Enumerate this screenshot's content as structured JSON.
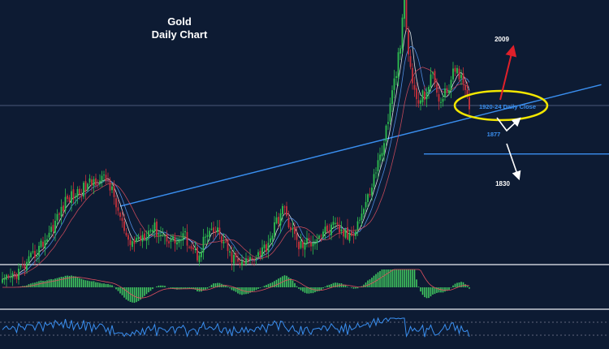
{
  "title": {
    "line1": "Gold",
    "line2": "Daily Chart"
  },
  "annotations": {
    "target_up": "2009",
    "daily_close": "1920-24 Daily Close",
    "support": "1877",
    "target_down": "1830"
  },
  "colors": {
    "background": "#0d1b33",
    "bull_candle": "#2fbf4f",
    "bear_candle": "#c8303a",
    "trendline": "#3a8ff0",
    "support_line": "#3a8ff0",
    "highlight_ellipse": "#f2e600",
    "arrow_up": "#e0202a",
    "arrow_down": "#ffffff",
    "panel_divider": "#c8ccd6",
    "ma_fast": "#ffffff",
    "ma_mid": "#5aa0ff",
    "ma_slow": "#e05060",
    "histogram": "#40c860",
    "oscillator": "#3a8ff0"
  },
  "chart_data": {
    "type": "candlestick",
    "instrument": "Gold",
    "timeframe": "Daily",
    "price_anchors": [
      {
        "t": 0,
        "p": 1740
      },
      {
        "t": 12,
        "p": 1760
      },
      {
        "t": 22,
        "p": 1790
      },
      {
        "t": 32,
        "p": 1830
      },
      {
        "t": 40,
        "p": 1840
      },
      {
        "t": 46,
        "p": 1850
      },
      {
        "t": 52,
        "p": 1850
      },
      {
        "t": 58,
        "p": 1810
      },
      {
        "t": 62,
        "p": 1780
      },
      {
        "t": 68,
        "p": 1790
      },
      {
        "t": 74,
        "p": 1800
      },
      {
        "t": 80,
        "p": 1790
      },
      {
        "t": 86,
        "p": 1785
      },
      {
        "t": 90,
        "p": 1790
      },
      {
        "t": 96,
        "p": 1770
      },
      {
        "t": 100,
        "p": 1790
      },
      {
        "t": 106,
        "p": 1795
      },
      {
        "t": 112,
        "p": 1770
      },
      {
        "t": 118,
        "p": 1760
      },
      {
        "t": 124,
        "p": 1770
      },
      {
        "t": 130,
        "p": 1780
      },
      {
        "t": 134,
        "p": 1800
      },
      {
        "t": 138,
        "p": 1820
      },
      {
        "t": 142,
        "p": 1800
      },
      {
        "t": 146,
        "p": 1780
      },
      {
        "t": 152,
        "p": 1785
      },
      {
        "t": 158,
        "p": 1795
      },
      {
        "t": 164,
        "p": 1800
      },
      {
        "t": 170,
        "p": 1790
      },
      {
        "t": 174,
        "p": 1800
      },
      {
        "t": 180,
        "p": 1830
      },
      {
        "t": 184,
        "p": 1860
      },
      {
        "t": 188,
        "p": 1890
      },
      {
        "t": 192,
        "p": 1940
      },
      {
        "t": 196,
        "p": 1990
      },
      {
        "t": 198,
        "p": 2040
      },
      {
        "t": 200,
        "p": 1980
      },
      {
        "t": 204,
        "p": 1930
      },
      {
        "t": 208,
        "p": 1940
      },
      {
        "t": 212,
        "p": 1960
      },
      {
        "t": 216,
        "p": 1930
      },
      {
        "t": 220,
        "p": 1950
      },
      {
        "t": 224,
        "p": 1970
      },
      {
        "t": 228,
        "p": 1940
      },
      {
        "t": 230,
        "p": 1924
      }
    ],
    "trendline": [
      {
        "t": 58,
        "p": 1822
      },
      {
        "t": 295,
        "p": 1950
      }
    ],
    "horizontal_lines": [
      {
        "p": 1928,
        "style": "thin"
      },
      {
        "p": 1877,
        "label": "1877"
      }
    ],
    "targets": {
      "up": 2009,
      "down": 1830
    },
    "highlight_zone": {
      "from": 1920,
      "to": 1924,
      "label": "1920-24 Daily Close"
    },
    "indicators": [
      {
        "name": "histogram",
        "panel": 2
      },
      {
        "name": "oscillator",
        "panel": 3
      }
    ]
  }
}
